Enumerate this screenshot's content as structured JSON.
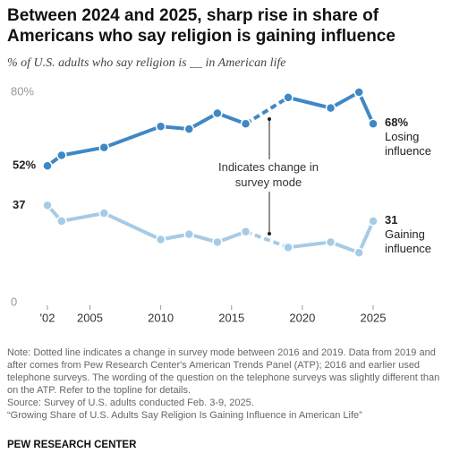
{
  "chart_data": {
    "type": "line",
    "title": "Between 2024 and 2025, sharp rise in share of Americans who say religion is gaining influence",
    "subtitle": "% of U.S. adults who say religion is __ in American life",
    "x": [
      2002,
      2003,
      2006,
      2010,
      2012,
      2014,
      2016,
      2019,
      2022,
      2024,
      2025
    ],
    "series": [
      {
        "name": "Losing influence",
        "color": "#3f88c5",
        "values": [
          52,
          56,
          59,
          67,
          66,
          72,
          68,
          78,
          74,
          80,
          68
        ],
        "value_labels": [
          "52%",
          null,
          null,
          null,
          null,
          null,
          null,
          null,
          null,
          null,
          "68%"
        ]
      },
      {
        "name": "Gaining influence",
        "color": "#a6cbe6",
        "values": [
          37,
          31,
          34,
          24,
          26,
          23,
          27,
          21,
          23,
          19,
          31
        ]
      }
    ],
    "dashed_after_index": 6,
    "annotation": "Indicates change in survey mode",
    "xlim": [
      2002,
      2025
    ],
    "xticks": [
      {
        "value": 2002,
        "label": "'02"
      },
      2005,
      2010,
      2015,
      2020,
      2025
    ],
    "ylim": [
      0,
      80
    ],
    "yticks": [
      0,
      {
        "value": 80,
        "label": "80%"
      }
    ],
    "note": "Note: Dotted line indicates a change in survey mode between 2016 and 2019. Data from 2019 and after comes from Pew Research Center's American Trends Panel (ATP); 2016 and earlier used telephone surveys. The wording of the question on the telephone surveys was slightly different than on the ATP. Refer to the topline for details.",
    "source": "Source: Survey of U.S. adults conducted Feb. 3-9, 2025.",
    "report": "“Growing Share of U.S. Adults Say Religion Is Gaining Influence in American Life”",
    "organization": "PEW RESEARCH CENTER"
  }
}
